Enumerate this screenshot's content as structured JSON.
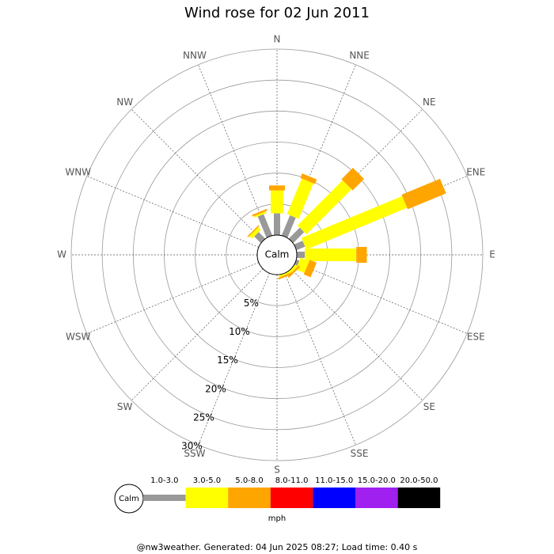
{
  "chart_data": {
    "type": "windrose",
    "title": "Wind rose for 02 Jun 2011",
    "categories": [
      "N",
      "NNE",
      "NE",
      "ENE",
      "E",
      "ESE",
      "SE",
      "SSE",
      "S",
      "SSW",
      "SW",
      "WSW",
      "W",
      "WNW",
      "NW",
      "NNW"
    ],
    "center_label": "Calm",
    "rlim": [
      0,
      30
    ],
    "rticks": [
      {
        "value": 5,
        "label": "5%"
      },
      {
        "value": 10,
        "label": "10%"
      },
      {
        "value": 15,
        "label": "15%"
      },
      {
        "value": 20,
        "label": "20%"
      },
      {
        "value": 25,
        "label": "25%"
      },
      {
        "value": 30,
        "label": "30%"
      }
    ],
    "series": [
      {
        "name": "1.0-3.0",
        "color": "#999999",
        "values": [
          3.5,
          3.5,
          2.5,
          1.5,
          1.3,
          0.5,
          0,
          0,
          0,
          0,
          0,
          0,
          0,
          0,
          1.5,
          3.7
        ]
      },
      {
        "name": "3.0-5.0",
        "color": "#ffff00",
        "values": [
          3.7,
          6.2,
          10.3,
          17.6,
          8.3,
          1.5,
          0.5,
          0.3,
          0,
          0,
          0,
          0,
          0,
          0,
          0.6,
          0.3
        ]
      },
      {
        "name": "5.0-8.0",
        "color": "#ffa500",
        "values": [
          0.8,
          0.8,
          2.6,
          6.7,
          1.7,
          1.2,
          0.3,
          0.3,
          0,
          0,
          0,
          0,
          0,
          0,
          0.2,
          0.3
        ]
      },
      {
        "name": "8.0-11.0",
        "color": "#ff0000",
        "values": [
          0,
          0,
          0,
          0,
          0,
          0,
          0,
          0,
          0,
          0,
          0,
          0,
          0,
          0,
          0,
          0
        ]
      },
      {
        "name": "11.0-15.0",
        "color": "#0000ff",
        "values": [
          0,
          0,
          0,
          0,
          0,
          0,
          0,
          0,
          0,
          0,
          0,
          0,
          0,
          0,
          0,
          0
        ]
      },
      {
        "name": "15.0-20.0",
        "color": "#a020f0",
        "values": [
          0,
          0,
          0,
          0,
          0,
          0,
          0,
          0,
          0,
          0,
          0,
          0,
          0,
          0,
          0,
          0
        ]
      },
      {
        "name": "20.0-50.0",
        "color": "#000000",
        "values": [
          0,
          0,
          0,
          0,
          0,
          0,
          0,
          0,
          0,
          0,
          0,
          0,
          0,
          0,
          0,
          0
        ]
      }
    ],
    "legend_unit": "mph",
    "footer": "@nw3weather. Generated: 04 Jun 2025 08:27; Load time: 0.40 s"
  }
}
